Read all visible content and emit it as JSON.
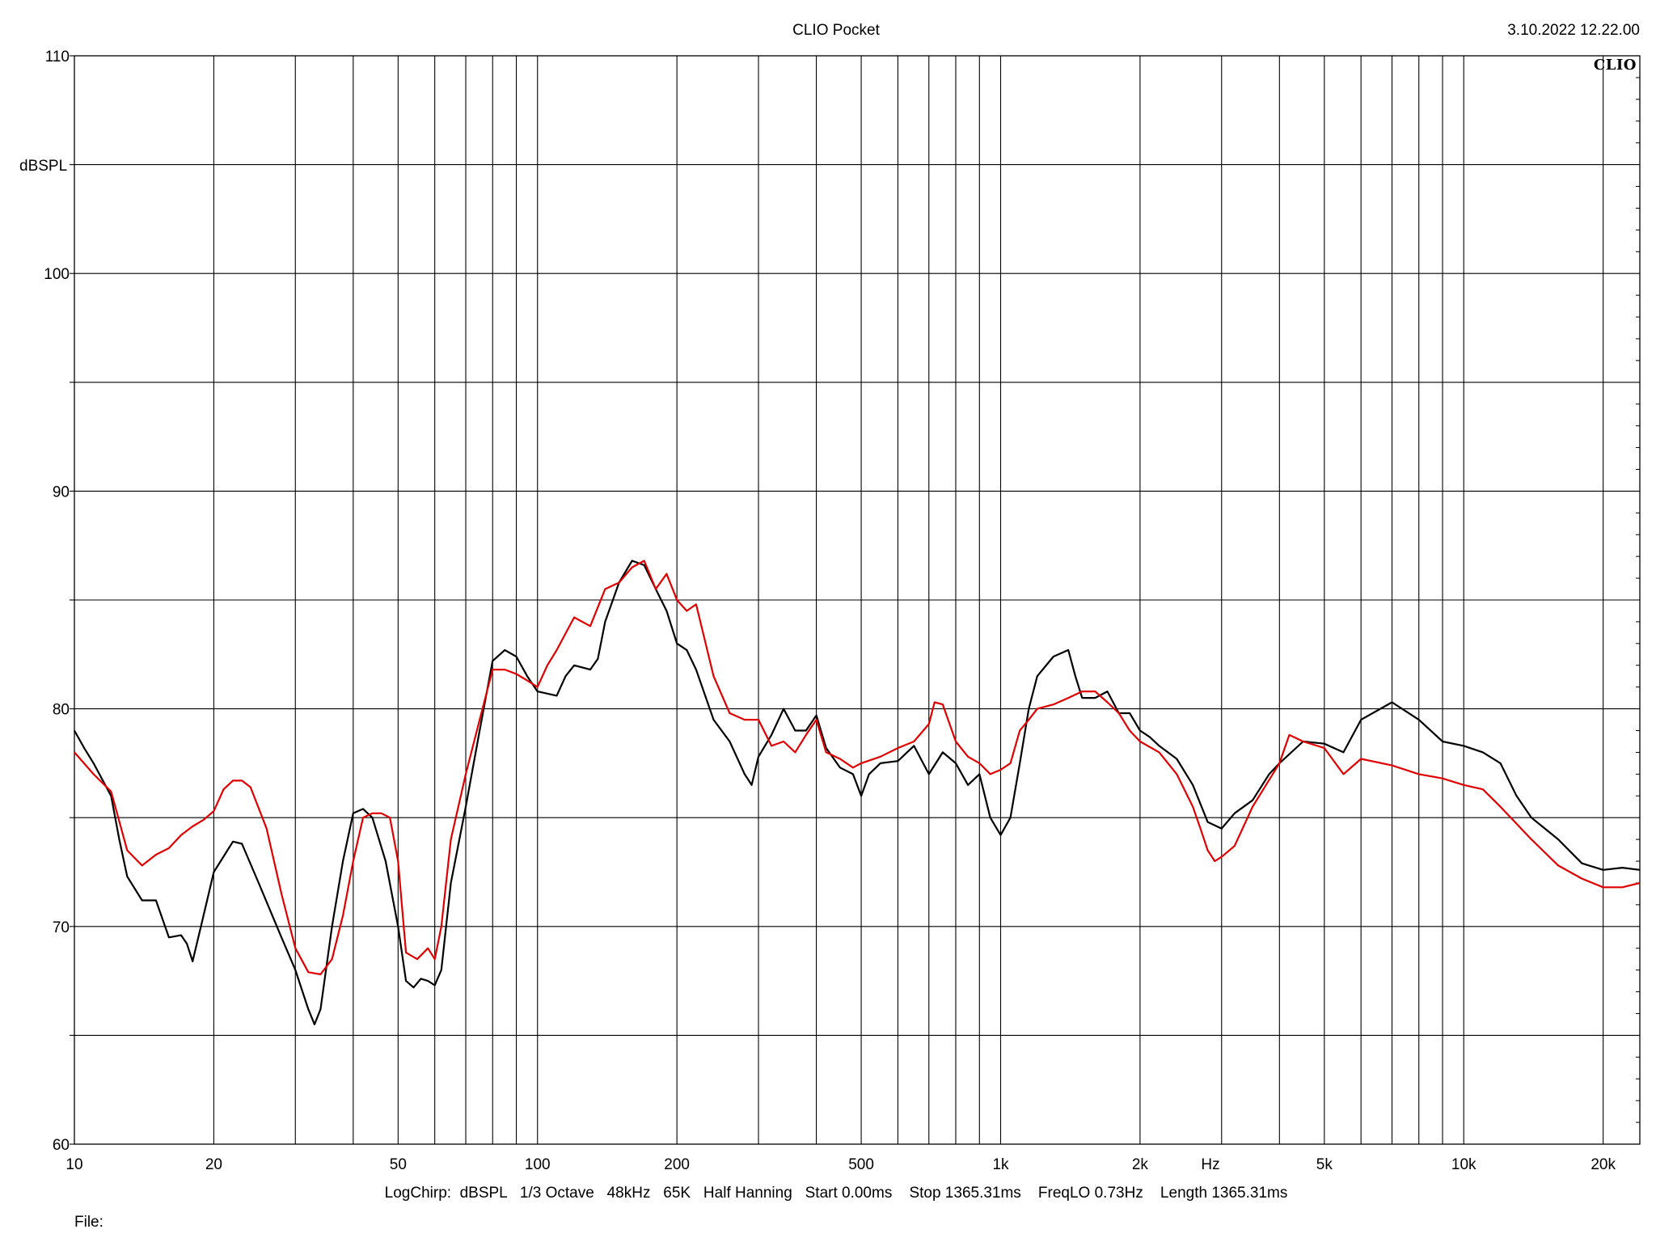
{
  "header": {
    "title": "CLIO Pocket",
    "timestamp": "3.10.2022 12.22.00",
    "logo": "CLIO"
  },
  "footer": {
    "settings": "LogChirp:  dBSPL   1/3 Octave   48kHz   65K   Half Hanning   Start 0.00ms    Stop 1365.31ms    FreqLO 0.73Hz    Length 1365.31ms",
    "file_label": "File:"
  },
  "chart_data": {
    "type": "line",
    "xscale": "log",
    "xlim": [
      10,
      24000
    ],
    "ylim": [
      60,
      110
    ],
    "xlabel": "Hz",
    "ylabel": "dBSPL",
    "grid": true,
    "x_ticks": [
      {
        "value": 10,
        "label": "10"
      },
      {
        "value": 20,
        "label": "20"
      },
      {
        "value": 50,
        "label": "50"
      },
      {
        "value": 100,
        "label": "100"
      },
      {
        "value": 200,
        "label": "200"
      },
      {
        "value": 500,
        "label": "500"
      },
      {
        "value": 1000,
        "label": "1k"
      },
      {
        "value": 2000,
        "label": "2k"
      },
      {
        "value": 5000,
        "label": "5k"
      },
      {
        "value": 10000,
        "label": "10k"
      },
      {
        "value": 20000,
        "label": "20k"
      }
    ],
    "y_ticks": [
      {
        "value": 60,
        "label": "60"
      },
      {
        "value": 70,
        "label": "70"
      },
      {
        "value": 80,
        "label": "80"
      },
      {
        "value": 90,
        "label": "90"
      },
      {
        "value": 100,
        "label": "100"
      },
      {
        "value": 110,
        "label": "110"
      }
    ],
    "series": [
      {
        "color": "#000000",
        "points": [
          [
            10,
            79
          ],
          [
            10.5,
            78.2
          ],
          [
            11,
            77.5
          ],
          [
            12,
            76
          ],
          [
            12.5,
            74
          ],
          [
            13,
            72.3
          ],
          [
            14,
            71.2
          ],
          [
            15,
            71.2
          ],
          [
            16,
            69.5
          ],
          [
            17,
            69.6
          ],
          [
            17.5,
            69.2
          ],
          [
            18,
            68.4
          ],
          [
            19,
            70.5
          ],
          [
            20,
            72.5
          ],
          [
            22,
            73.9
          ],
          [
            23,
            73.8
          ],
          [
            25,
            72
          ],
          [
            28,
            69.5
          ],
          [
            30,
            68
          ],
          [
            32,
            66.2
          ],
          [
            33,
            65.5
          ],
          [
            34,
            66.2
          ],
          [
            36,
            70
          ],
          [
            38,
            73
          ],
          [
            40,
            75.2
          ],
          [
            42,
            75.4
          ],
          [
            44,
            75
          ],
          [
            47,
            73
          ],
          [
            50,
            70
          ],
          [
            52,
            67.5
          ],
          [
            54,
            67.2
          ],
          [
            56,
            67.6
          ],
          [
            58,
            67.5
          ],
          [
            60,
            67.3
          ],
          [
            62,
            68
          ],
          [
            65,
            72
          ],
          [
            70,
            75.5
          ],
          [
            75,
            79
          ],
          [
            80,
            82.2
          ],
          [
            85,
            82.7
          ],
          [
            90,
            82.4
          ],
          [
            95,
            81.5
          ],
          [
            100,
            80.8
          ],
          [
            105,
            80.7
          ],
          [
            110,
            80.6
          ],
          [
            115,
            81.5
          ],
          [
            120,
            82
          ],
          [
            130,
            81.8
          ],
          [
            135,
            82.3
          ],
          [
            140,
            84
          ],
          [
            150,
            85.8
          ],
          [
            160,
            86.8
          ],
          [
            170,
            86.6
          ],
          [
            180,
            85.5
          ],
          [
            190,
            84.5
          ],
          [
            200,
            83
          ],
          [
            210,
            82.7
          ],
          [
            220,
            81.8
          ],
          [
            240,
            79.5
          ],
          [
            260,
            78.5
          ],
          [
            280,
            77
          ],
          [
            290,
            76.5
          ],
          [
            300,
            77.8
          ],
          [
            320,
            78.8
          ],
          [
            340,
            80
          ],
          [
            360,
            79
          ],
          [
            380,
            79
          ],
          [
            400,
            79.7
          ],
          [
            420,
            78.2
          ],
          [
            450,
            77.3
          ],
          [
            480,
            77
          ],
          [
            500,
            76
          ],
          [
            520,
            77
          ],
          [
            550,
            77.5
          ],
          [
            600,
            77.6
          ],
          [
            650,
            78.3
          ],
          [
            700,
            77
          ],
          [
            750,
            78
          ],
          [
            800,
            77.5
          ],
          [
            850,
            76.5
          ],
          [
            900,
            77
          ],
          [
            950,
            75
          ],
          [
            1000,
            74.2
          ],
          [
            1050,
            75
          ],
          [
            1100,
            77.5
          ],
          [
            1150,
            80
          ],
          [
            1200,
            81.5
          ],
          [
            1300,
            82.4
          ],
          [
            1400,
            82.7
          ],
          [
            1450,
            81.5
          ],
          [
            1500,
            80.5
          ],
          [
            1600,
            80.5
          ],
          [
            1700,
            80.8
          ],
          [
            1800,
            79.8
          ],
          [
            1900,
            79.8
          ],
          [
            2000,
            79
          ],
          [
            2100,
            78.7
          ],
          [
            2200,
            78.3
          ],
          [
            2400,
            77.7
          ],
          [
            2600,
            76.5
          ],
          [
            2800,
            74.8
          ],
          [
            3000,
            74.5
          ],
          [
            3200,
            75.2
          ],
          [
            3500,
            75.8
          ],
          [
            3800,
            77
          ],
          [
            4000,
            77.5
          ],
          [
            4500,
            78.5
          ],
          [
            5000,
            78.4
          ],
          [
            5500,
            78
          ],
          [
            6000,
            79.5
          ],
          [
            7000,
            80.3
          ],
          [
            8000,
            79.5
          ],
          [
            9000,
            78.5
          ],
          [
            10000,
            78.3
          ],
          [
            11000,
            78
          ],
          [
            12000,
            77.5
          ],
          [
            13000,
            76
          ],
          [
            14000,
            75
          ],
          [
            16000,
            74
          ],
          [
            18000,
            72.9
          ],
          [
            20000,
            72.6
          ],
          [
            22000,
            72.7
          ],
          [
            24000,
            72.6
          ]
        ]
      },
      {
        "color": "#e00000",
        "points": [
          [
            10,
            78
          ],
          [
            11,
            77
          ],
          [
            12,
            76.2
          ],
          [
            13,
            73.5
          ],
          [
            14,
            72.8
          ],
          [
            15,
            73.3
          ],
          [
            16,
            73.6
          ],
          [
            17,
            74.2
          ],
          [
            18,
            74.6
          ],
          [
            19,
            74.9
          ],
          [
            20,
            75.3
          ],
          [
            21,
            76.3
          ],
          [
            22,
            76.7
          ],
          [
            23,
            76.7
          ],
          [
            24,
            76.4
          ],
          [
            26,
            74.5
          ],
          [
            28,
            71.5
          ],
          [
            30,
            69
          ],
          [
            32,
            67.9
          ],
          [
            34,
            67.8
          ],
          [
            36,
            68.5
          ],
          [
            38,
            70.5
          ],
          [
            40,
            73
          ],
          [
            42,
            75
          ],
          [
            44,
            75.2
          ],
          [
            46,
            75.2
          ],
          [
            48,
            75
          ],
          [
            50,
            73
          ],
          [
            52,
            68.8
          ],
          [
            55,
            68.5
          ],
          [
            58,
            69
          ],
          [
            60,
            68.5
          ],
          [
            62,
            70
          ],
          [
            65,
            74
          ],
          [
            70,
            77
          ],
          [
            75,
            79.5
          ],
          [
            80,
            81.8
          ],
          [
            85,
            81.8
          ],
          [
            90,
            81.6
          ],
          [
            95,
            81.3
          ],
          [
            100,
            81
          ],
          [
            105,
            82
          ],
          [
            110,
            82.7
          ],
          [
            120,
            84.2
          ],
          [
            130,
            83.8
          ],
          [
            140,
            85.5
          ],
          [
            150,
            85.8
          ],
          [
            160,
            86.5
          ],
          [
            170,
            86.8
          ],
          [
            180,
            85.5
          ],
          [
            190,
            86.2
          ],
          [
            200,
            85
          ],
          [
            210,
            84.5
          ],
          [
            220,
            84.8
          ],
          [
            240,
            81.5
          ],
          [
            260,
            79.8
          ],
          [
            280,
            79.5
          ],
          [
            300,
            79.5
          ],
          [
            320,
            78.3
          ],
          [
            340,
            78.5
          ],
          [
            360,
            78
          ],
          [
            380,
            78.8
          ],
          [
            400,
            79.5
          ],
          [
            420,
            78
          ],
          [
            450,
            77.7
          ],
          [
            480,
            77.3
          ],
          [
            500,
            77.5
          ],
          [
            550,
            77.8
          ],
          [
            600,
            78.2
          ],
          [
            650,
            78.5
          ],
          [
            700,
            79.3
          ],
          [
            720,
            80.3
          ],
          [
            750,
            80.2
          ],
          [
            800,
            78.5
          ],
          [
            850,
            77.8
          ],
          [
            900,
            77.5
          ],
          [
            950,
            77
          ],
          [
            1000,
            77.2
          ],
          [
            1050,
            77.5
          ],
          [
            1100,
            79
          ],
          [
            1150,
            79.5
          ],
          [
            1200,
            80
          ],
          [
            1300,
            80.2
          ],
          [
            1400,
            80.5
          ],
          [
            1500,
            80.8
          ],
          [
            1600,
            80.8
          ],
          [
            1700,
            80.3
          ],
          [
            1800,
            79.8
          ],
          [
            1900,
            79
          ],
          [
            2000,
            78.5
          ],
          [
            2200,
            78
          ],
          [
            2400,
            77
          ],
          [
            2600,
            75.5
          ],
          [
            2700,
            74.5
          ],
          [
            2800,
            73.5
          ],
          [
            2900,
            73
          ],
          [
            3000,
            73.2
          ],
          [
            3200,
            73.7
          ],
          [
            3500,
            75.5
          ],
          [
            4000,
            77.5
          ],
          [
            4200,
            78.8
          ],
          [
            4500,
            78.5
          ],
          [
            5000,
            78.2
          ],
          [
            5500,
            77
          ],
          [
            6000,
            77.7
          ],
          [
            7000,
            77.4
          ],
          [
            8000,
            77
          ],
          [
            9000,
            76.8
          ],
          [
            10000,
            76.5
          ],
          [
            11000,
            76.3
          ],
          [
            12000,
            75.5
          ],
          [
            14000,
            74
          ],
          [
            16000,
            72.8
          ],
          [
            18000,
            72.2
          ],
          [
            20000,
            71.8
          ],
          [
            22000,
            71.8
          ],
          [
            24000,
            72
          ]
        ]
      }
    ]
  }
}
